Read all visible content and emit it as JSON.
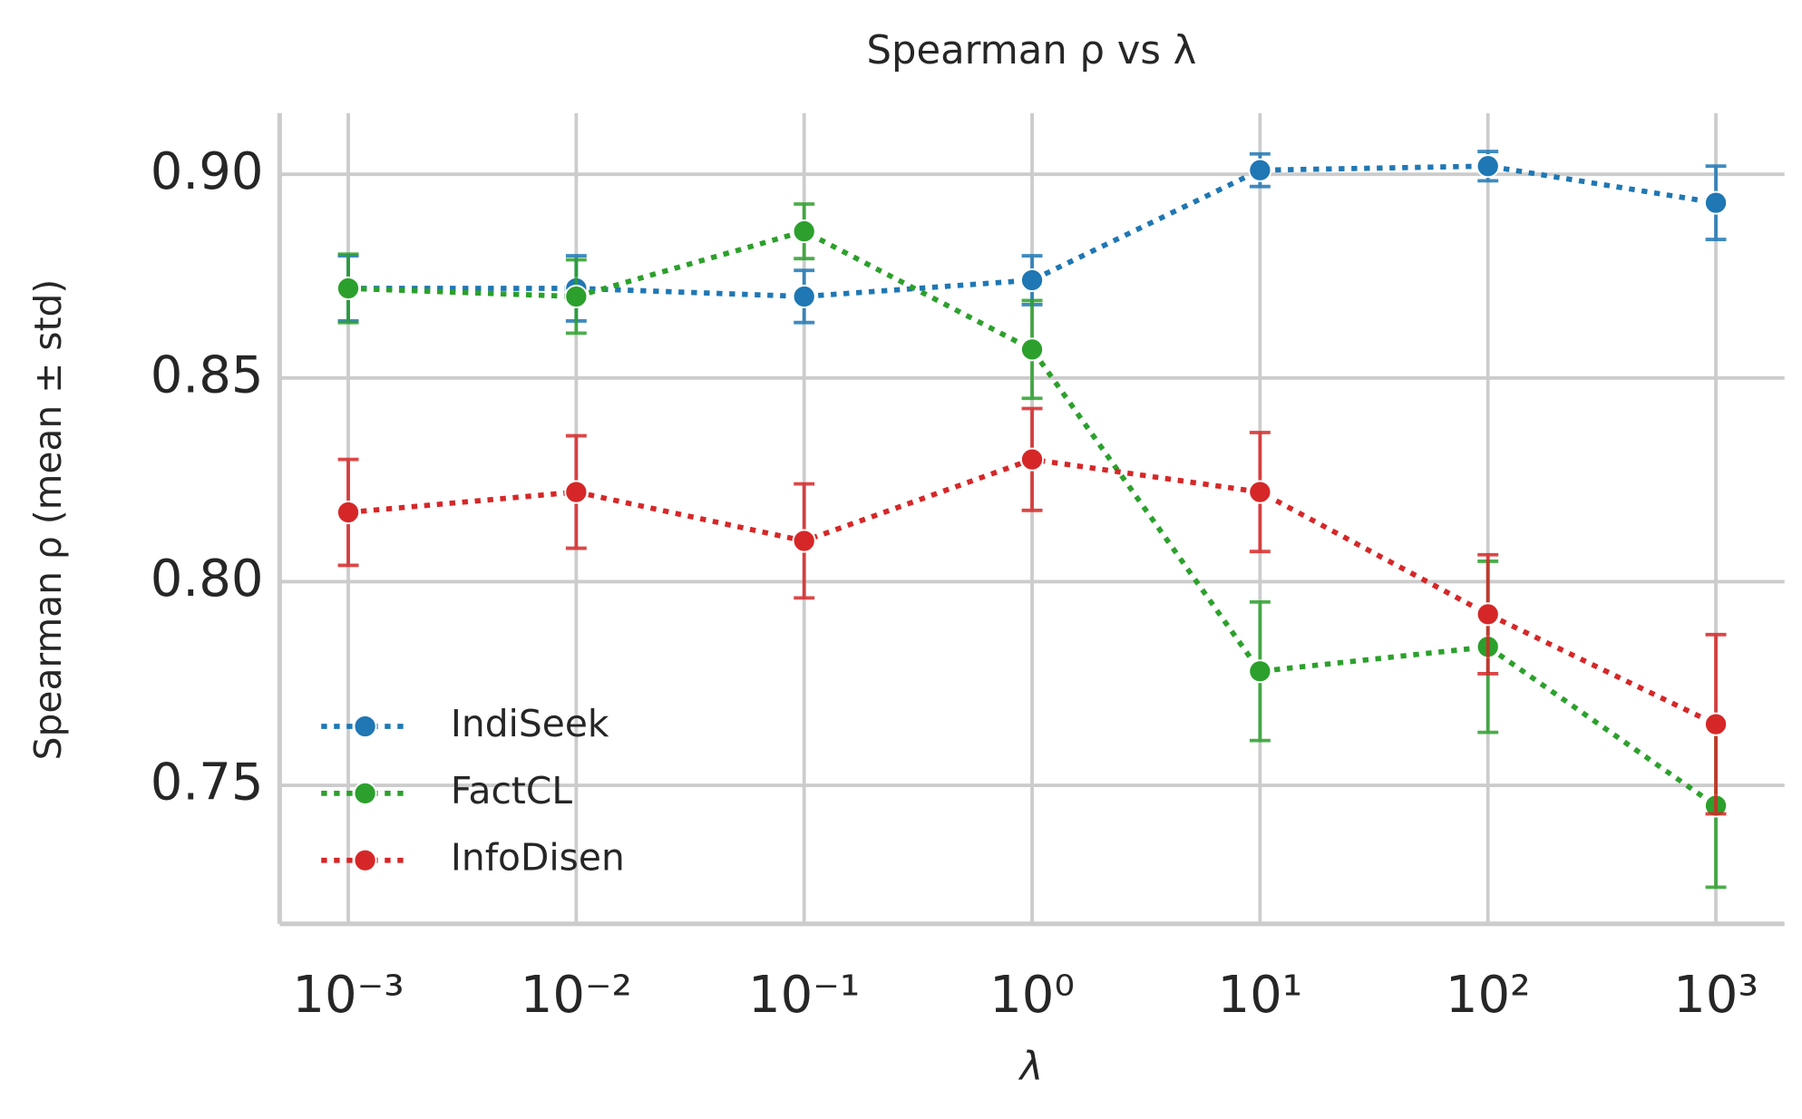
{
  "chart_data": {
    "type": "errorbar_line",
    "title": "Spearman ρ vs λ",
    "x_label": "λ",
    "y_label": "Spearman ρ (mean ± std)",
    "x": [
      0.001,
      0.01,
      0.1,
      1,
      10,
      100,
      1000
    ],
    "xscale": "log",
    "xlim": [
      0.0005,
      2000
    ],
    "xticks": [
      {
        "value": 0.001,
        "label": "10⁻³"
      },
      {
        "value": 0.01,
        "label": "10⁻²"
      },
      {
        "value": 0.1,
        "label": "10⁻¹"
      },
      {
        "value": 1,
        "label": "10⁰"
      },
      {
        "value": 10,
        "label": "10¹"
      },
      {
        "value": 100,
        "label": "10²"
      },
      {
        "value": 1000,
        "label": "10³"
      }
    ],
    "ylim": [
      0.716,
      0.915
    ],
    "yticks": [
      {
        "value": 0.75,
        "label": "0.75"
      },
      {
        "value": 0.8,
        "label": "0.80"
      },
      {
        "value": 0.85,
        "label": "0.85"
      },
      {
        "value": 0.9,
        "label": "0.90"
      }
    ],
    "grid": true,
    "legend": "lower left",
    "series": [
      {
        "name": "IndiSeek",
        "color": "#1f77b4",
        "values": [
          0.872,
          0.872,
          0.87,
          0.874,
          0.901,
          0.902,
          0.893
        ],
        "errors": [
          0.008,
          0.008,
          0.0064,
          0.006,
          0.004,
          0.0036,
          0.009
        ]
      },
      {
        "name": "FactCL",
        "color": "#2ca02c",
        "values": [
          0.872,
          0.87,
          0.886,
          0.857,
          0.778,
          0.784,
          0.745
        ],
        "errors": [
          0.0084,
          0.009,
          0.0067,
          0.012,
          0.017,
          0.021,
          0.02
        ]
      },
      {
        "name": "InfoDisen",
        "color": "#d62728",
        "values": [
          0.817,
          0.822,
          0.81,
          0.83,
          0.822,
          0.792,
          0.765
        ],
        "errors": [
          0.013,
          0.0138,
          0.014,
          0.0125,
          0.0146,
          0.0146,
          0.022
        ]
      }
    ]
  }
}
